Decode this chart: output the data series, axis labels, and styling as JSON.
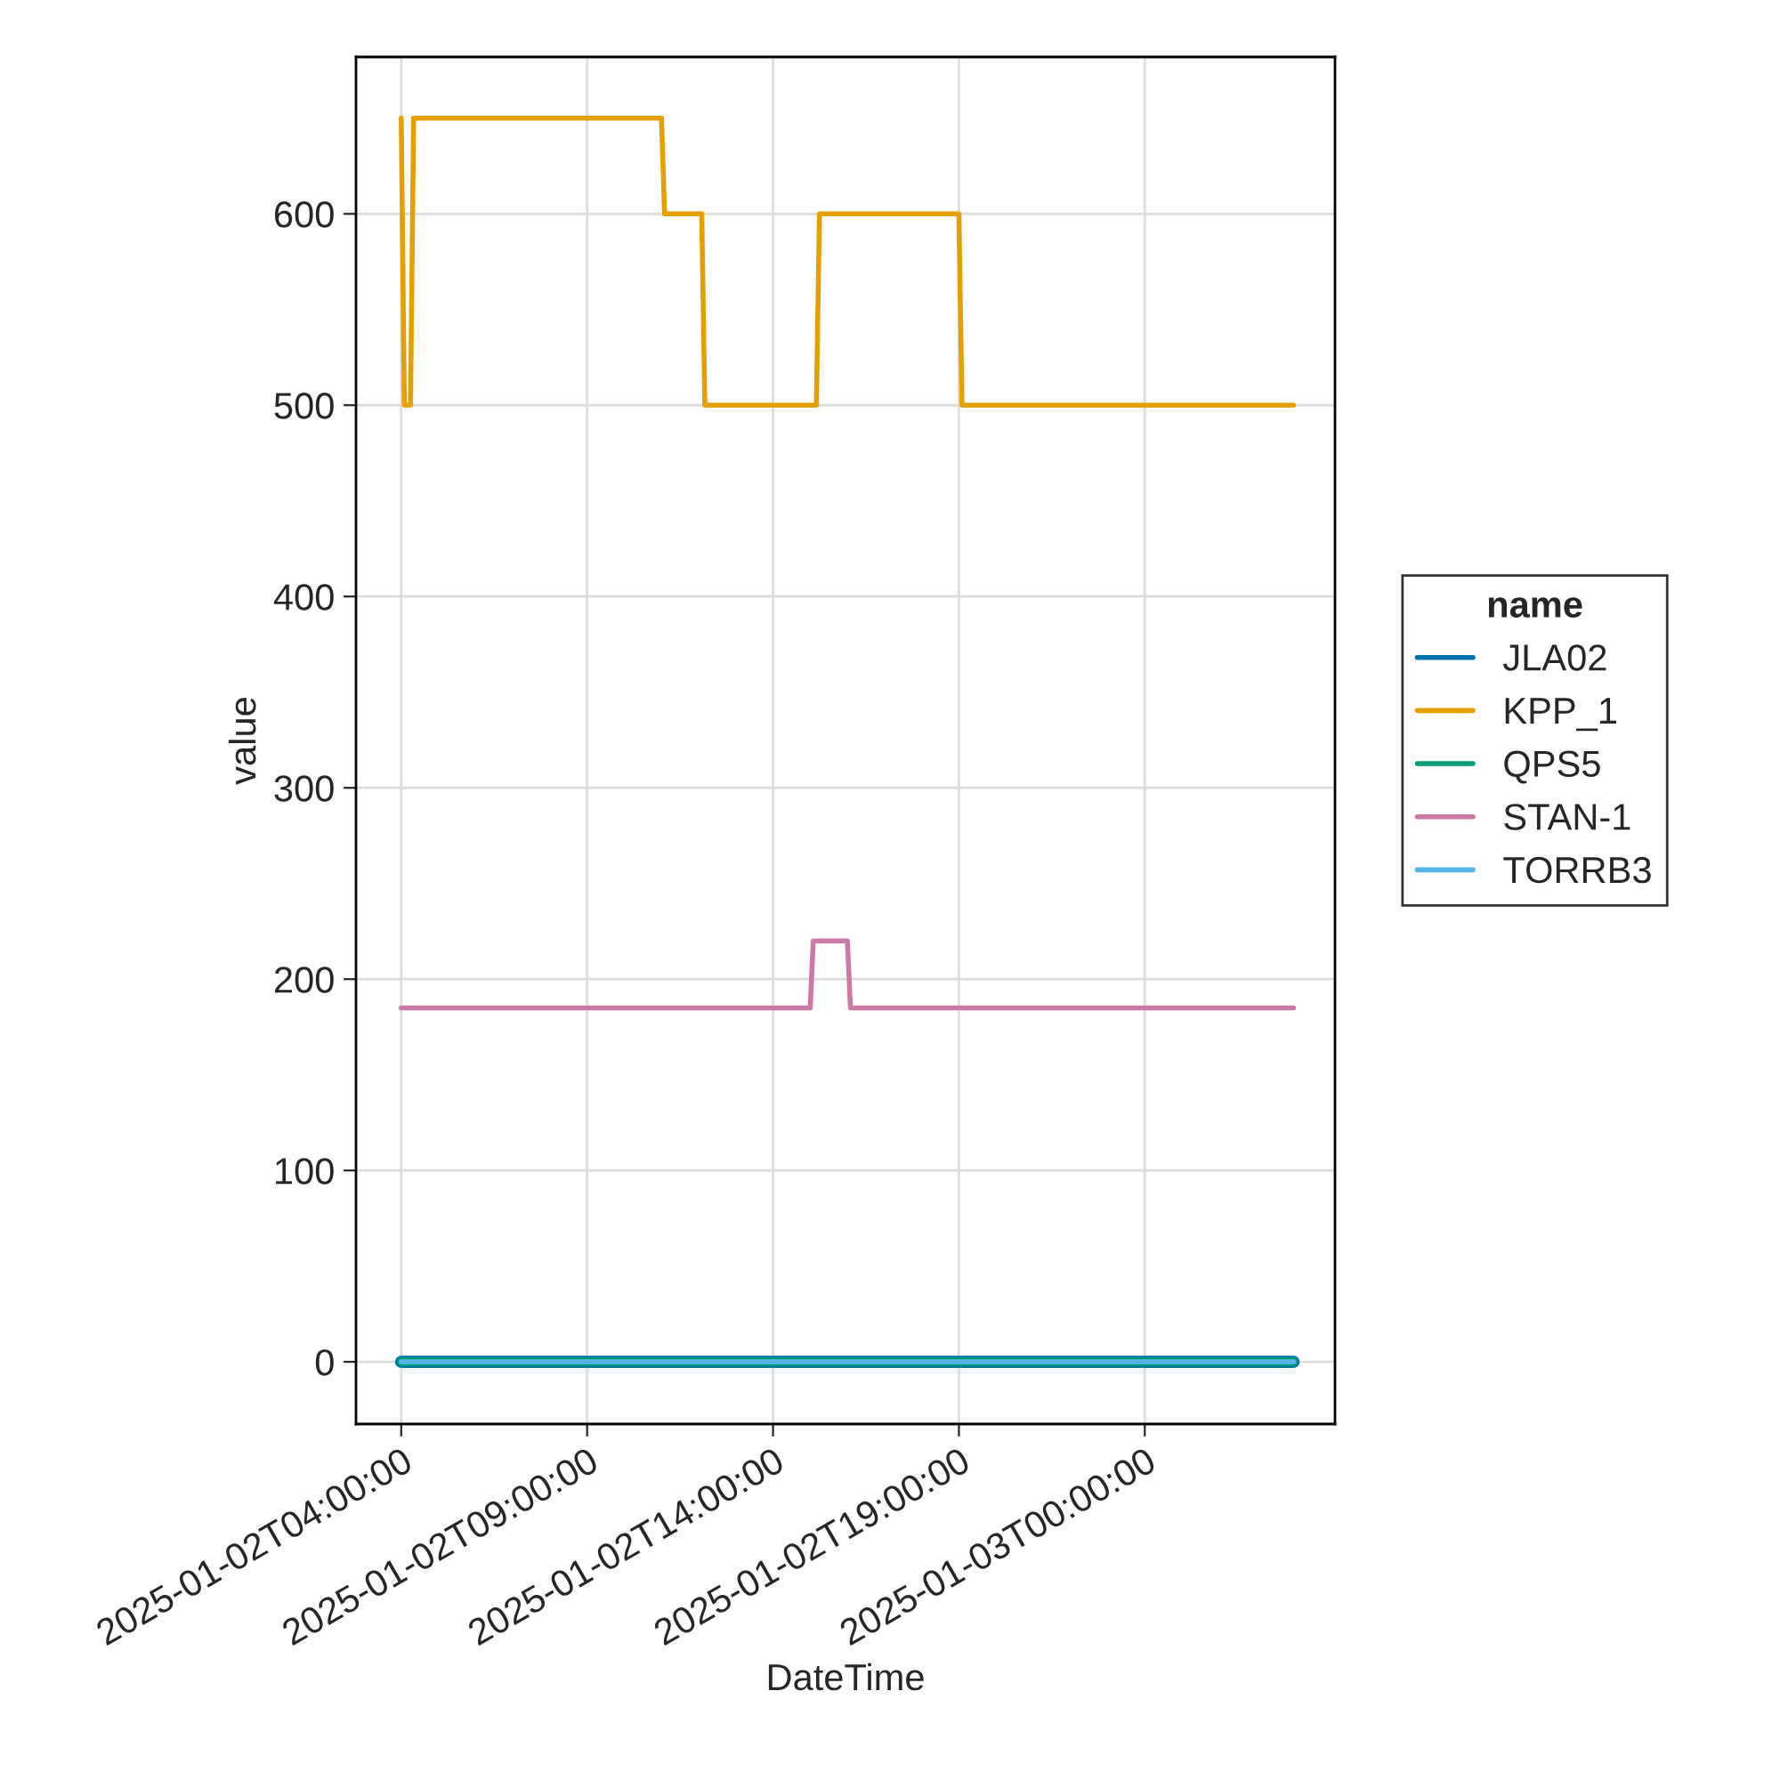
{
  "chart_data": {
    "type": "line",
    "xlabel": "DateTime",
    "ylabel": "value",
    "legend_title": "name",
    "series": [
      {
        "name": "JLA02",
        "color": "#0072b2",
        "x": [
          "2025-01-02T04:00",
          "2025-01-03T04:00"
        ],
        "values": [
          0,
          0
        ]
      },
      {
        "name": "KPP_1",
        "color": "#e69f00",
        "x": [
          "2025-01-02T04:00",
          "2025-01-02T04:05",
          "2025-01-02T04:15",
          "2025-01-02T04:20",
          "2025-01-02T11:00",
          "2025-01-02T11:05",
          "2025-01-02T12:05",
          "2025-01-02T12:10",
          "2025-01-02T15:10",
          "2025-01-02T15:15",
          "2025-01-02T19:00",
          "2025-01-02T19:05",
          "2025-01-03T04:00"
        ],
        "values": [
          650,
          500,
          500,
          650,
          650,
          600,
          600,
          500,
          500,
          600,
          600,
          500,
          500
        ]
      },
      {
        "name": "QPS5",
        "color": "#009e73",
        "x": [
          "2025-01-02T04:00",
          "2025-01-03T04:00"
        ],
        "values": [
          0,
          0
        ]
      },
      {
        "name": "STAN-1",
        "color": "#cc79a7",
        "x": [
          "2025-01-02T04:00",
          "2025-01-02T15:00",
          "2025-01-02T15:05",
          "2025-01-02T16:00",
          "2025-01-02T16:05",
          "2025-01-03T04:00"
        ],
        "values": [
          185,
          185,
          220,
          220,
          185,
          185
        ]
      },
      {
        "name": "TORRB3",
        "color": "#56b4e9",
        "x": [
          "2025-01-02T04:00",
          "2025-01-03T04:00"
        ],
        "values": [
          0,
          0
        ]
      }
    ],
    "xlim": [
      "2025-01-02T02:47",
      "2025-01-03T05:07"
    ],
    "xticks": [
      {
        "value": "2025-01-02T04:00",
        "label": "2025-01-02T04:00:00"
      },
      {
        "value": "2025-01-02T09:00",
        "label": "2025-01-02T09:00:00"
      },
      {
        "value": "2025-01-02T14:00",
        "label": "2025-01-02T14:00:00"
      },
      {
        "value": "2025-01-02T19:00",
        "label": "2025-01-02T19:00:00"
      },
      {
        "value": "2025-01-03T00:00",
        "label": "2025-01-03T00:00:00"
      }
    ],
    "ylim": [
      -32.5,
      682
    ],
    "yticks": [
      0,
      100,
      200,
      300,
      400,
      500,
      600
    ],
    "grid": true,
    "legend": "right",
    "line_style": "solid"
  }
}
